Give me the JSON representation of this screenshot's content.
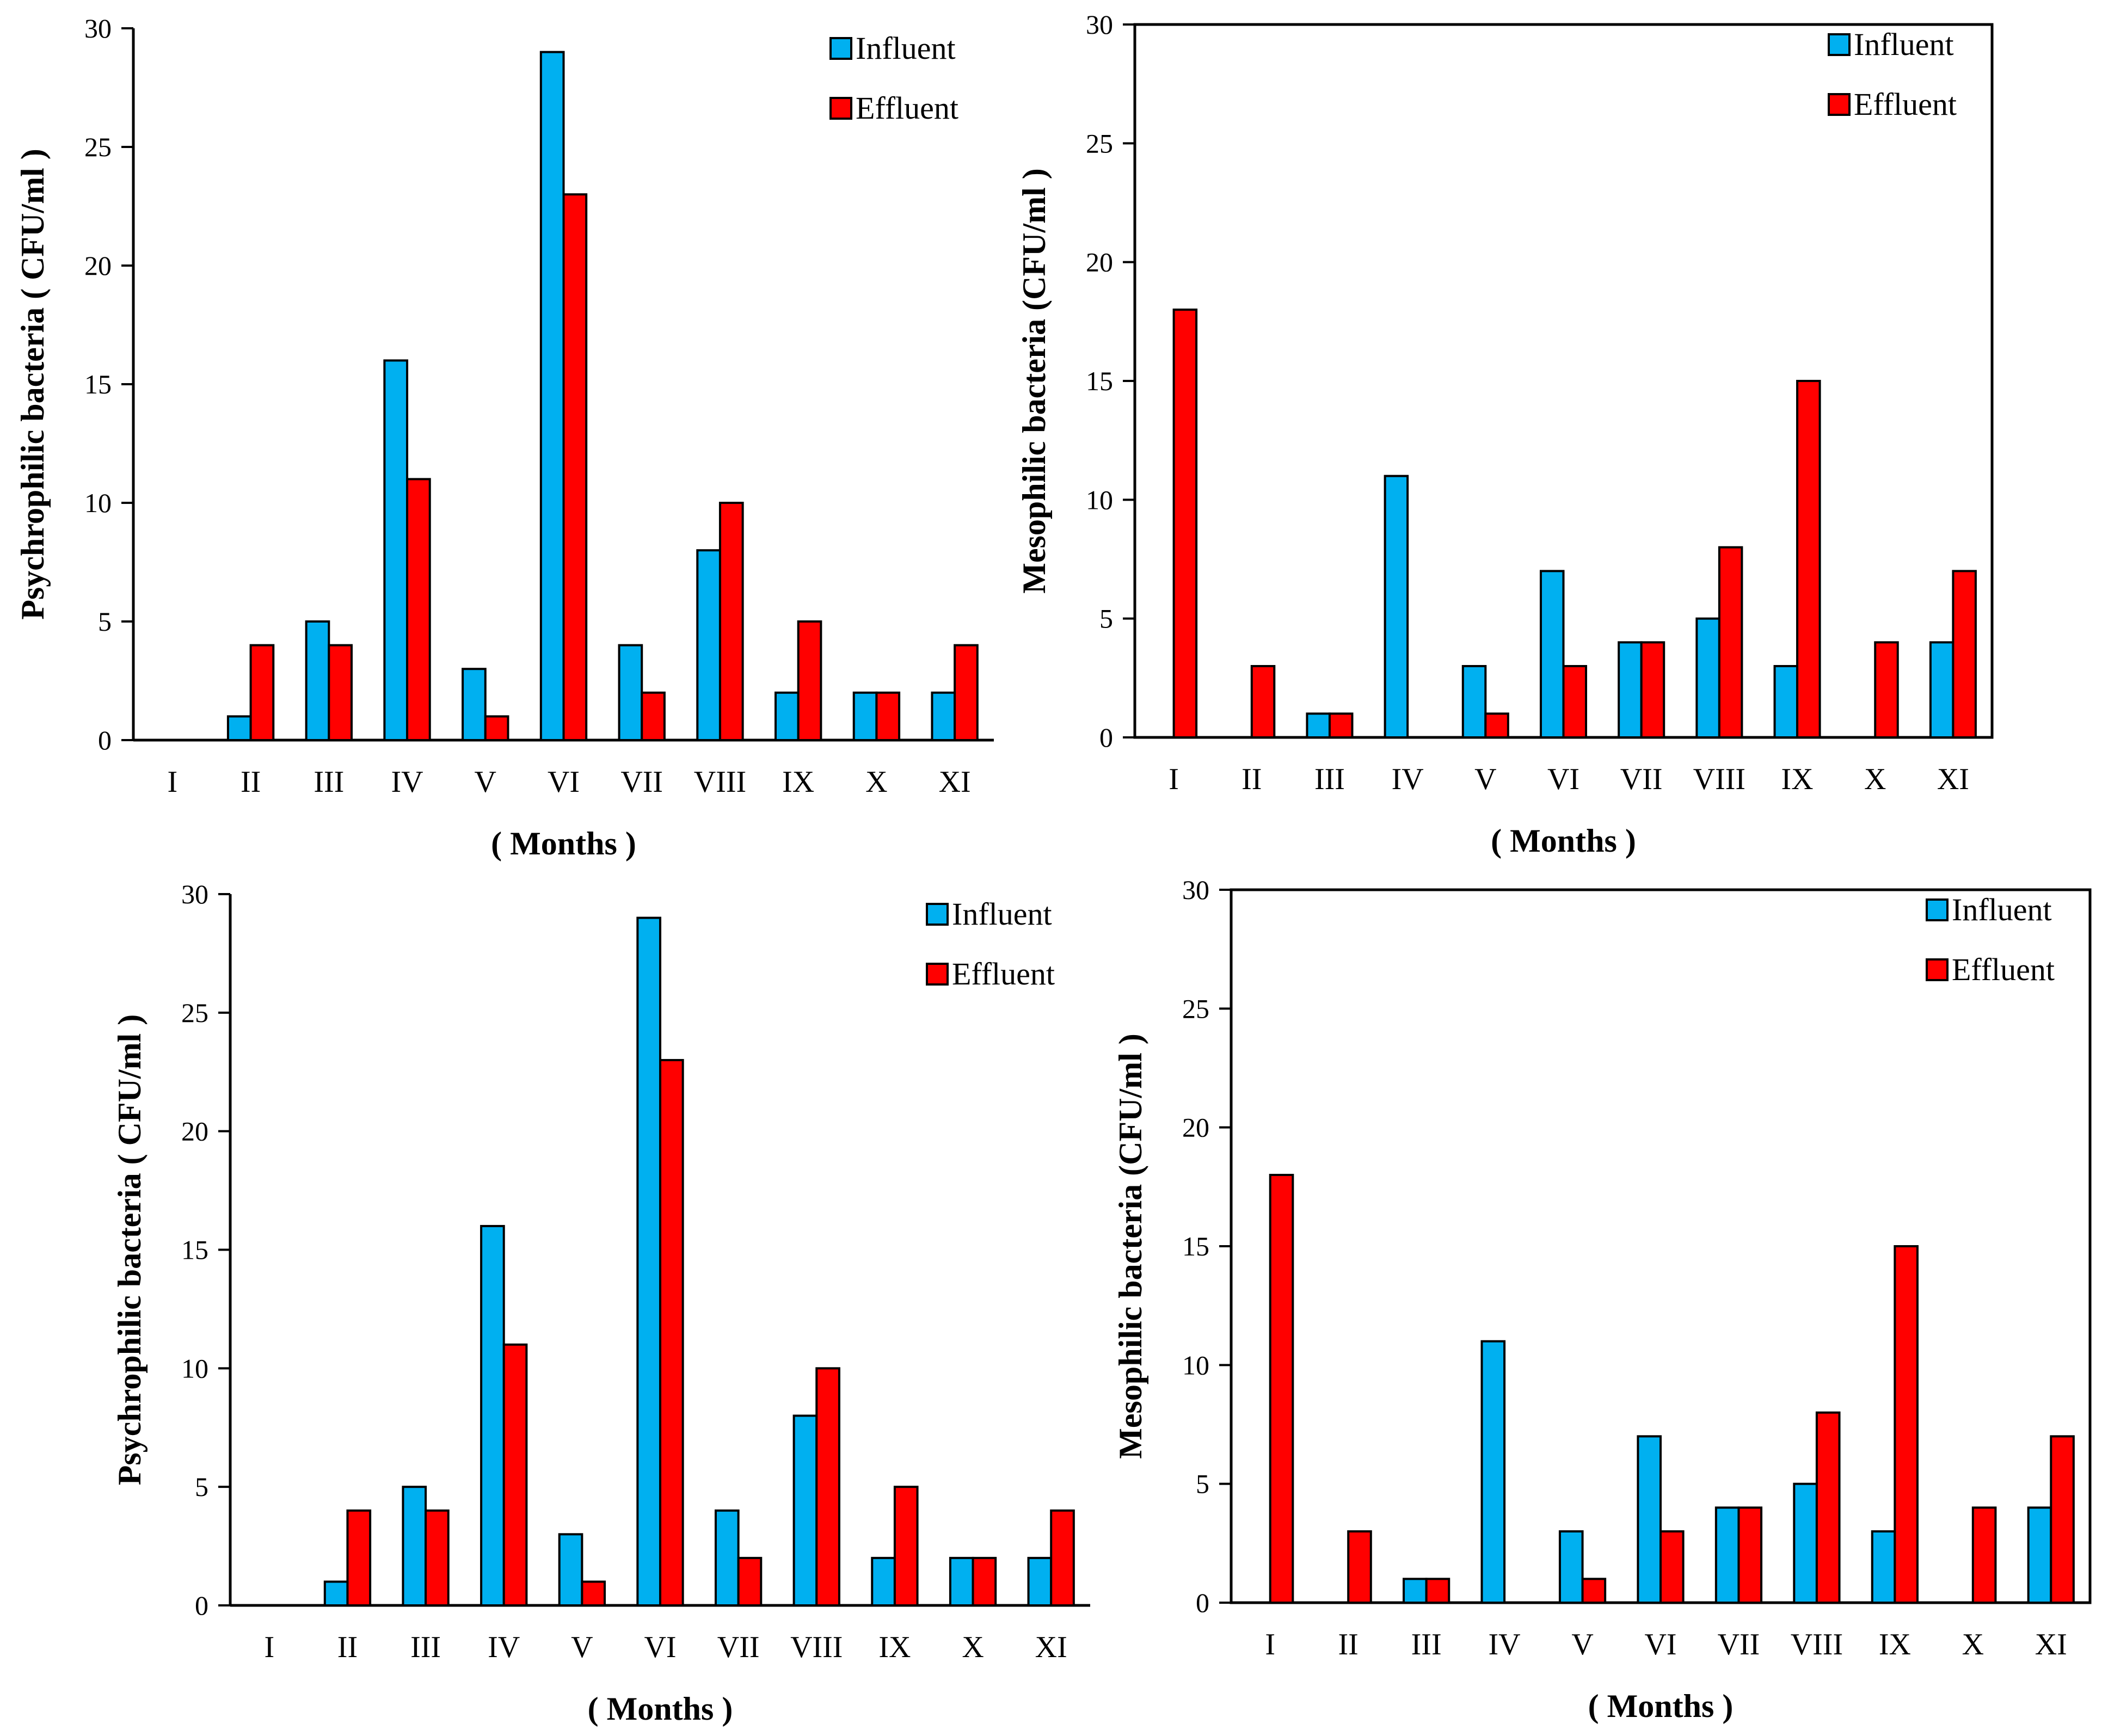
{
  "colors": {
    "influent": "#00B0F0",
    "effluent": "#FF0000"
  },
  "chart_data": [
    {
      "type": "bar",
      "title": "",
      "ylabel": "Psychrophilic bacteria  ( CFU/ml )",
      "xlabel": "( Months )",
      "ylim": [
        0,
        30
      ],
      "yticks": [
        0,
        5,
        10,
        15,
        20,
        25,
        30
      ],
      "categories": [
        "I",
        "II",
        "III",
        "IV",
        "V",
        "VI",
        "VII",
        "VIII",
        "IX",
        "X",
        "XI"
      ],
      "series": [
        {
          "name": "Influent",
          "values": [
            0,
            1,
            5,
            16,
            3,
            29,
            4,
            8,
            2,
            2,
            2
          ]
        },
        {
          "name": "Effluent",
          "values": [
            0,
            4,
            4,
            11,
            1,
            23,
            2,
            10,
            5,
            2,
            4
          ]
        }
      ],
      "legend": "top-right",
      "frame": "open",
      "grid": false
    },
    {
      "type": "bar",
      "title": "",
      "ylabel": "Mesophilic  bacteria (CFU/ml )",
      "xlabel": "( Months )",
      "ylim": [
        0,
        30
      ],
      "yticks": [
        0,
        5,
        10,
        15,
        20,
        25,
        30
      ],
      "categories": [
        "I",
        "II",
        "III",
        "IV",
        "V",
        "VI",
        "VII",
        "VIII",
        "IX",
        "X",
        "XI"
      ],
      "series": [
        {
          "name": "Influent",
          "values": [
            0,
            0,
            1,
            11,
            3,
            7,
            4,
            5,
            3,
            0,
            4
          ]
        },
        {
          "name": "Effluent",
          "values": [
            18,
            3,
            1,
            0,
            1,
            3,
            4,
            8,
            15,
            4,
            7
          ]
        }
      ],
      "legend": "top-right",
      "frame": "box",
      "grid": false
    },
    {
      "type": "bar",
      "title": "",
      "ylabel": "Psychrophilic bacteria  ( CFU/ml )",
      "xlabel": "( Months )",
      "ylim": [
        0,
        30
      ],
      "yticks": [
        0,
        5,
        10,
        15,
        20,
        25,
        30
      ],
      "categories": [
        "I",
        "II",
        "III",
        "IV",
        "V",
        "VI",
        "VII",
        "VIII",
        "IX",
        "X",
        "XI"
      ],
      "series": [
        {
          "name": "Influent",
          "values": [
            0,
            1,
            5,
            16,
            3,
            29,
            4,
            8,
            2,
            2,
            2
          ]
        },
        {
          "name": "Effluent",
          "values": [
            0,
            4,
            4,
            11,
            1,
            23,
            2,
            10,
            5,
            2,
            4
          ]
        }
      ],
      "legend": "top-right",
      "frame": "open",
      "grid": false
    },
    {
      "type": "bar",
      "title": "",
      "ylabel": "Mesophilic  bacteria (CFU/ml )",
      "xlabel": "( Months )",
      "ylim": [
        0,
        30
      ],
      "yticks": [
        0,
        5,
        10,
        15,
        20,
        25,
        30
      ],
      "categories": [
        "I",
        "II",
        "III",
        "IV",
        "V",
        "VI",
        "VII",
        "VIII",
        "IX",
        "X",
        "XI"
      ],
      "series": [
        {
          "name": "Influent",
          "values": [
            0,
            0,
            1,
            11,
            3,
            7,
            4,
            5,
            3,
            0,
            4
          ]
        },
        {
          "name": "Effluent",
          "values": [
            18,
            3,
            1,
            0,
            1,
            3,
            4,
            8,
            15,
            4,
            7
          ]
        }
      ],
      "legend": "top-right",
      "frame": "box",
      "grid": false
    }
  ]
}
